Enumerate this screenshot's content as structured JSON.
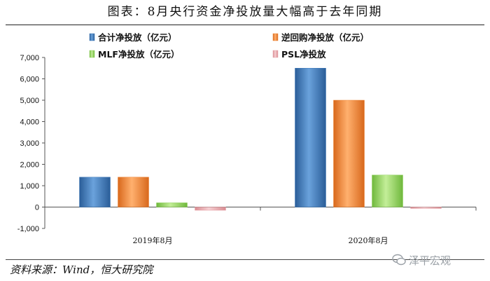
{
  "header": {
    "title": "图表：8月央行资金净投放量大幅高于去年同期"
  },
  "footer": {
    "source": "资料来源：Wind，恒大研究院",
    "watermark": "泽平宏观"
  },
  "chart_data": {
    "type": "bar",
    "title": "",
    "xlabel": "",
    "ylabel": "",
    "categories": [
      "2019年8月",
      "2020年8月"
    ],
    "ylim": [
      -1000,
      7000
    ],
    "yticks": [
      "-1,000",
      "0",
      "1,000",
      "2,000",
      "3,000",
      "4,000",
      "5,000",
      "6,000",
      "7,000"
    ],
    "grid": false,
    "legend_placement": "top",
    "series": [
      {
        "name": "合计净投放（亿元）",
        "values": [
          1400,
          6500
        ],
        "color": "#3d78b8"
      },
      {
        "name": "逆回购净投放（亿元）",
        "values": [
          1400,
          5000
        ],
        "color": "#ee8131"
      },
      {
        "name": "MLF净投放（亿元）",
        "values": [
          200,
          1500
        ],
        "color": "#8fd05c"
      },
      {
        "name": "PSL净投放",
        "values": [
          -150,
          -50
        ],
        "color": "#e8a3a8"
      }
    ]
  }
}
